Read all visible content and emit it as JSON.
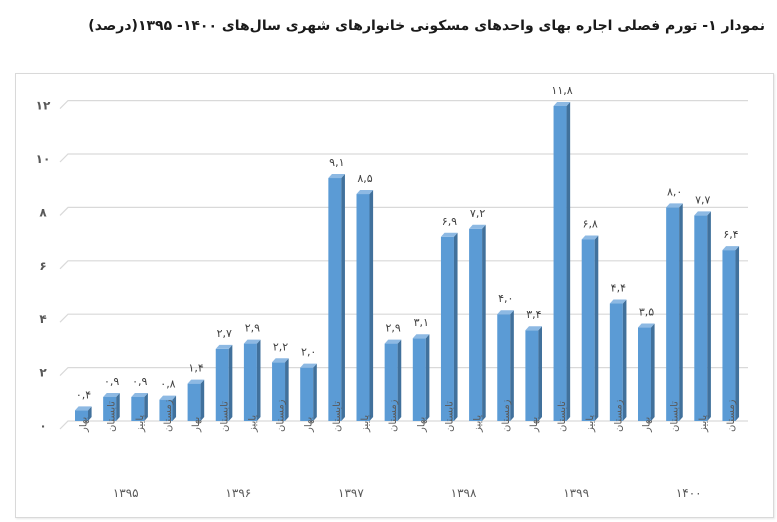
{
  "title": "نمودار ۱- تورم فصلی اجاره بهای واحدهای مسکونی خانوارهای شهری سال‌های ۱۴۰۰- ۱۳۹۵(درصد)",
  "colors": {
    "bar_front": "#5b9bd5",
    "bar_side": "#41719c",
    "bar_top": "#8db9e3",
    "grid": "#d9d9d9"
  },
  "chart_data": {
    "type": "bar",
    "title": "نمودار ۱- تورم فصلی اجاره بهای واحدهای مسکونی خانوارهای شهری سال‌های ۱۴۰۰- ۱۳۹۵(درصد)",
    "xlabel": "",
    "ylabel": "",
    "ylim": [
      0,
      12
    ],
    "yticks": [
      0,
      2,
      4,
      6,
      8,
      10,
      12
    ],
    "ytick_labels": [
      "۰",
      "۲",
      "۴",
      "۶",
      "۸",
      "۱۰",
      "۱۲"
    ],
    "grid": true,
    "legend": null,
    "groups": [
      "۱۳۹۵",
      "۱۳۹۶",
      "۱۳۹۷",
      "۱۳۹۸",
      "۱۳۹۹",
      "۱۴۰۰"
    ],
    "categories": [
      "بهار",
      "تابستان",
      "پاییز",
      "زمستان",
      "بهار",
      "تابستان",
      "پاییز",
      "زمستان",
      "بهار",
      "تابستان",
      "پاییز",
      "زمستان",
      "بهار",
      "تابستان",
      "پاییز",
      "زمستان",
      "بهار",
      "تابستان",
      "پاییز",
      "زمستان",
      "بهار",
      "تابستان",
      "پاییز",
      "زمستان"
    ],
    "values": [
      0.4,
      0.9,
      0.9,
      0.8,
      1.4,
      2.7,
      2.9,
      2.2,
      2.0,
      9.1,
      8.5,
      2.9,
      3.1,
      6.9,
      7.2,
      4.0,
      3.4,
      11.8,
      6.8,
      4.4,
      3.5,
      8.0,
      7.7,
      6.4
    ],
    "value_labels": [
      "۰,۴",
      "۰,۹",
      "۰,۹",
      "۰,۸",
      "۱,۴",
      "۲,۷",
      "۲,۹",
      "۲,۲",
      "۲,۰",
      "۹,۱",
      "۸,۵",
      "۲,۹",
      "۳,۱",
      "۶,۹",
      "۷,۲",
      "۴,۰",
      "۳,۴",
      "۱۱,۸",
      "۶,۸",
      "۴,۴",
      "۳,۵",
      "۸,۰",
      "۷,۷",
      "۶,۴"
    ]
  }
}
